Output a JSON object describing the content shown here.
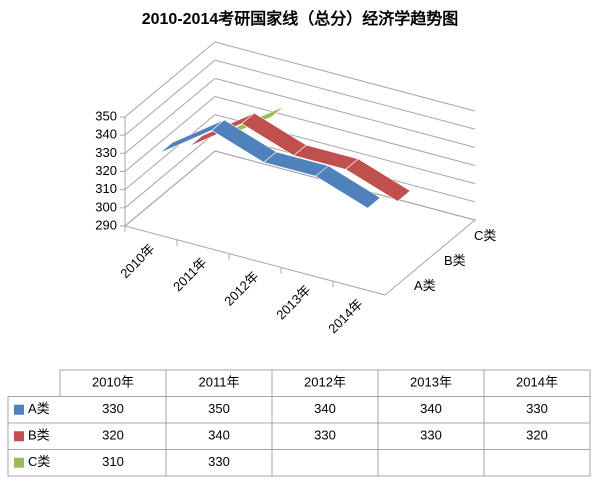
{
  "chart_data": {
    "type": "line3d",
    "title": "2010-2014考研国家线（总分）经济学趋势图",
    "categories": [
      "2010年",
      "2011年",
      "2012年",
      "2013年",
      "2014年"
    ],
    "series": [
      {
        "name": "A类",
        "color": "#4f81bd",
        "values": [
          330,
          350,
          340,
          340,
          330
        ]
      },
      {
        "name": "B类",
        "color": "#c0504d",
        "values": [
          320,
          340,
          330,
          330,
          320
        ]
      },
      {
        "name": "C类",
        "color": "#9bbb59",
        "values": [
          310,
          330,
          null,
          null,
          null
        ]
      }
    ],
    "ylim": [
      290,
      350
    ],
    "yticks": [
      290,
      300,
      310,
      320,
      330,
      340,
      350
    ],
    "grid": true,
    "data_table": true
  }
}
